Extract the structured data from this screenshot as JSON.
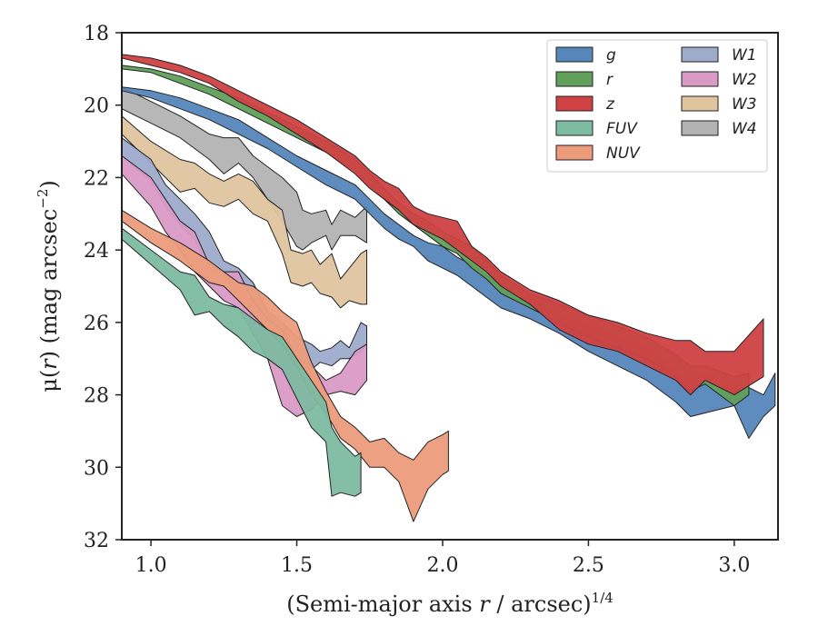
{
  "chart_data": {
    "type": "area",
    "xlabel_main": "(Semi-major axis ",
    "xlabel_var": "r",
    "xlabel_unit": " / arcsec)",
    "xlabel_exp": "1/4",
    "ylabel_main": "μ(",
    "ylabel_var": "r",
    "ylabel_unit": ") (mag arcsec",
    "ylabel_exp": "−2",
    "ylabel_close": ")",
    "xlim": [
      0.9,
      3.15
    ],
    "ylim": [
      32,
      18
    ],
    "y_inverted": true,
    "xticks": [
      1.0,
      1.5,
      2.0,
      2.5,
      3.0
    ],
    "xtick_labels": [
      "1.0",
      "1.5",
      "2.0",
      "2.5",
      "3.0"
    ],
    "yticks": [
      18,
      20,
      22,
      24,
      26,
      28,
      30,
      32
    ],
    "ytick_labels": [
      "18",
      "20",
      "22",
      "24",
      "26",
      "28",
      "30",
      "32"
    ],
    "legend_position": "top-right",
    "legend_columns": 2,
    "series": [
      {
        "name": "W4",
        "color": "#b3b3b3",
        "x": [
          0.9,
          1.0,
          1.1,
          1.2,
          1.25,
          1.3,
          1.35,
          1.4,
          1.45,
          1.5,
          1.52,
          1.55,
          1.6,
          1.62,
          1.65,
          1.7,
          1.74
        ],
        "top": [
          19.5,
          19.9,
          20.3,
          20.8,
          20.9,
          20.9,
          21.4,
          21.7,
          22.0,
          22.4,
          22.9,
          23.0,
          22.9,
          23.3,
          22.9,
          23.1,
          22.8
        ],
        "bot": [
          20.1,
          20.5,
          20.9,
          21.5,
          21.9,
          21.6,
          22.0,
          22.6,
          23.2,
          23.9,
          24.0,
          23.8,
          23.6,
          24.0,
          23.6,
          23.6,
          23.8
        ]
      },
      {
        "name": "W3",
        "color": "#dfc49e",
        "x": [
          0.9,
          1.0,
          1.1,
          1.15,
          1.2,
          1.25,
          1.3,
          1.35,
          1.4,
          1.45,
          1.48,
          1.52,
          1.55,
          1.58,
          1.62,
          1.65,
          1.68,
          1.72,
          1.74
        ],
        "top": [
          20.3,
          21.0,
          21.5,
          21.6,
          21.9,
          22.1,
          21.9,
          22.1,
          22.6,
          22.9,
          24.0,
          24.1,
          24.0,
          24.4,
          24.1,
          24.8,
          24.5,
          24.1,
          24.0
        ],
        "bot": [
          20.8,
          21.6,
          22.4,
          22.3,
          22.7,
          22.8,
          22.6,
          23.0,
          23.2,
          24.1,
          24.9,
          25.0,
          24.9,
          25.2,
          25.3,
          25.6,
          25.4,
          25.5,
          25.5
        ]
      },
      {
        "name": "W1",
        "color": "#9eabcb",
        "x": [
          0.9,
          1.0,
          1.05,
          1.1,
          1.15,
          1.2,
          1.25,
          1.3,
          1.35,
          1.4,
          1.45,
          1.5,
          1.55,
          1.58,
          1.62,
          1.65,
          1.68,
          1.72,
          1.74
        ],
        "top": [
          20.9,
          21.5,
          22.2,
          22.6,
          23.0,
          23.5,
          24.3,
          24.5,
          24.9,
          25.7,
          26.0,
          26.4,
          26.6,
          26.8,
          26.7,
          26.5,
          26.7,
          26.0,
          26.1
        ],
        "bot": [
          21.4,
          22.1,
          22.8,
          23.3,
          23.7,
          24.6,
          24.7,
          25.2,
          25.8,
          26.3,
          26.8,
          27.1,
          27.3,
          27.1,
          27.2,
          27.0,
          27.0,
          26.8,
          26.6
        ]
      },
      {
        "name": "W2",
        "color": "#da9ac6",
        "x": [
          0.9,
          1.0,
          1.05,
          1.1,
          1.15,
          1.2,
          1.25,
          1.3,
          1.35,
          1.4,
          1.45,
          1.5,
          1.55,
          1.6,
          1.65,
          1.7,
          1.74
        ],
        "top": [
          21.4,
          22.0,
          22.6,
          23.2,
          23.5,
          24.4,
          24.6,
          24.6,
          25.4,
          25.9,
          26.2,
          27.0,
          27.2,
          27.6,
          27.4,
          26.8,
          26.6
        ],
        "bot": [
          21.9,
          22.8,
          23.5,
          24.0,
          24.6,
          25.0,
          25.4,
          25.6,
          26.3,
          27.0,
          28.3,
          28.6,
          28.4,
          28.0,
          27.9,
          28.0,
          27.6
        ]
      },
      {
        "name": "NUV",
        "color": "#ec9c7b",
        "x": [
          0.9,
          1.0,
          1.1,
          1.2,
          1.25,
          1.3,
          1.35,
          1.4,
          1.45,
          1.5,
          1.55,
          1.6,
          1.65,
          1.7,
          1.75,
          1.8,
          1.85,
          1.9,
          1.95,
          2.0,
          2.02
        ],
        "top": [
          22.9,
          23.4,
          23.8,
          24.3,
          24.6,
          24.9,
          25.0,
          25.3,
          25.7,
          26.0,
          27.1,
          27.9,
          28.6,
          28.9,
          29.3,
          29.2,
          29.6,
          29.8,
          29.3,
          29.1,
          29.0
        ],
        "bot": [
          23.2,
          23.8,
          24.3,
          24.9,
          25.0,
          25.4,
          25.8,
          26.2,
          26.6,
          27.2,
          28.0,
          28.5,
          29.2,
          29.5,
          30.0,
          30.0,
          30.4,
          31.5,
          30.6,
          30.2,
          30.1
        ]
      },
      {
        "name": "FUV",
        "color": "#7dbba2",
        "x": [
          0.9,
          1.0,
          1.1,
          1.15,
          1.2,
          1.25,
          1.3,
          1.35,
          1.4,
          1.45,
          1.5,
          1.55,
          1.6,
          1.62,
          1.65,
          1.7,
          1.72
        ],
        "top": [
          23.4,
          24.0,
          24.6,
          24.7,
          25.3,
          25.5,
          25.6,
          25.9,
          26.2,
          26.4,
          27.0,
          27.6,
          28.2,
          28.9,
          29.3,
          29.7,
          29.6
        ],
        "bot": [
          23.7,
          24.4,
          25.1,
          25.8,
          25.7,
          26.1,
          26.4,
          26.8,
          27.0,
          27.3,
          28.1,
          28.9,
          29.3,
          30.8,
          30.7,
          30.8,
          30.7
        ]
      },
      {
        "name": "g",
        "color": "#5686ba",
        "x": [
          0.9,
          1.0,
          1.1,
          1.2,
          1.3,
          1.4,
          1.5,
          1.6,
          1.7,
          1.75,
          1.8,
          1.85,
          1.9,
          1.95,
          2.0,
          2.05,
          2.1,
          2.15,
          2.2,
          2.3,
          2.4,
          2.5,
          2.55,
          2.6,
          2.7,
          2.8,
          2.85,
          2.9,
          3.0,
          3.05,
          3.1,
          3.14
        ],
        "top": [
          19.5,
          19.6,
          19.8,
          20.1,
          20.4,
          20.9,
          21.4,
          21.8,
          22.2,
          22.6,
          23.0,
          23.3,
          23.6,
          23.8,
          23.9,
          24.2,
          24.4,
          24.7,
          25.0,
          25.3,
          25.8,
          26.1,
          26.2,
          26.4,
          26.7,
          27.3,
          27.6,
          27.4,
          27.9,
          27.8,
          28.0,
          27.4
        ],
        "bot": [
          19.6,
          19.8,
          20.1,
          20.4,
          20.8,
          21.2,
          21.7,
          22.2,
          22.6,
          23.0,
          23.4,
          23.7,
          23.9,
          24.3,
          24.5,
          24.7,
          25.0,
          25.3,
          25.6,
          25.9,
          26.3,
          26.8,
          27.0,
          27.2,
          27.6,
          28.2,
          28.6,
          28.5,
          28.3,
          29.2,
          28.6,
          28.3
        ]
      },
      {
        "name": "r",
        "color": "#60a05b",
        "x": [
          0.9,
          1.0,
          1.1,
          1.2,
          1.3,
          1.4,
          1.5,
          1.6,
          1.7,
          1.75,
          1.8,
          1.85,
          1.9,
          1.95,
          2.0,
          2.05,
          2.1,
          2.15,
          2.2,
          2.3,
          2.4,
          2.5,
          2.6,
          2.7,
          2.8,
          2.85,
          2.9,
          3.0,
          3.05
        ],
        "top": [
          18.9,
          19.0,
          19.2,
          19.5,
          19.8,
          20.2,
          20.6,
          21.0,
          21.5,
          21.9,
          22.3,
          22.7,
          23.0,
          23.2,
          23.5,
          23.7,
          23.9,
          24.3,
          24.7,
          25.2,
          25.5,
          25.8,
          26.1,
          26.4,
          26.9,
          27.2,
          27.2,
          27.5,
          27.4
        ],
        "bot": [
          19.0,
          19.1,
          19.4,
          19.7,
          20.1,
          20.5,
          20.9,
          21.3,
          21.8,
          22.2,
          22.6,
          23.0,
          23.3,
          23.6,
          23.9,
          24.1,
          24.5,
          24.8,
          25.2,
          25.6,
          26.0,
          26.4,
          26.7,
          27.0,
          27.5,
          27.9,
          27.7,
          28.3,
          28.0
        ]
      },
      {
        "name": "z",
        "color": "#cf4143",
        "x": [
          0.9,
          1.0,
          1.1,
          1.2,
          1.3,
          1.4,
          1.5,
          1.6,
          1.7,
          1.75,
          1.8,
          1.85,
          1.9,
          1.95,
          2.0,
          2.05,
          2.1,
          2.15,
          2.2,
          2.3,
          2.4,
          2.5,
          2.6,
          2.7,
          2.8,
          2.85,
          2.9,
          3.0,
          3.1
        ],
        "top": [
          18.6,
          18.7,
          18.9,
          19.2,
          19.6,
          20.0,
          20.4,
          20.9,
          21.4,
          21.8,
          22.1,
          22.3,
          22.8,
          23.0,
          23.1,
          23.2,
          23.9,
          24.2,
          24.6,
          25.1,
          25.4,
          25.8,
          26.0,
          26.3,
          26.5,
          26.5,
          26.8,
          26.8,
          25.9
        ],
        "bot": [
          18.7,
          18.9,
          19.1,
          19.4,
          19.9,
          20.3,
          20.8,
          21.3,
          21.9,
          22.3,
          22.6,
          22.9,
          23.3,
          23.5,
          23.7,
          24.0,
          24.3,
          24.6,
          25.0,
          25.5,
          26.2,
          26.6,
          26.8,
          27.2,
          27.6,
          28.0,
          27.6,
          28.0,
          27.5
        ]
      }
    ],
    "legend_order": [
      "g",
      "r",
      "z",
      "FUV",
      "NUV",
      "W1",
      "W2",
      "W3",
      "W4"
    ]
  }
}
